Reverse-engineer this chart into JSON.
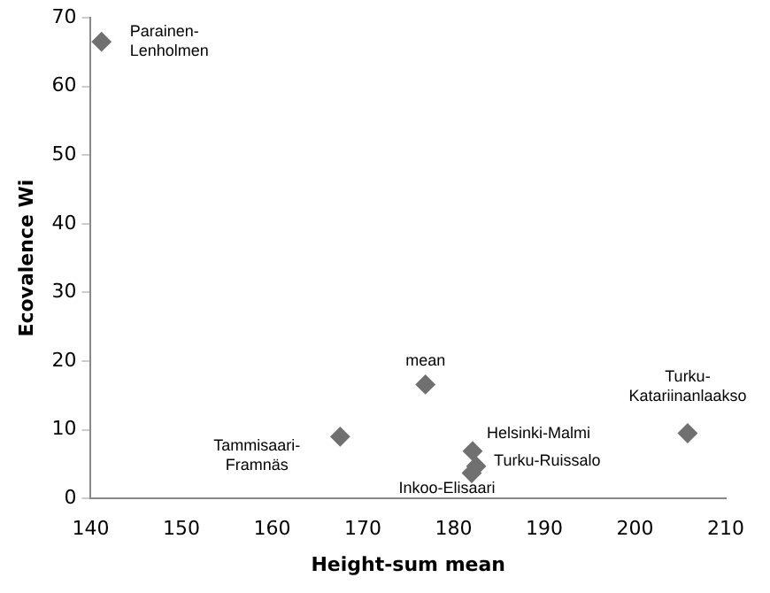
{
  "chart_data": {
    "type": "scatter",
    "xlabel": "Height-sum mean",
    "ylabel": "Ecovalence Wi",
    "x": [
      141.2,
      167.5,
      176.9,
      182.1,
      182.5,
      182,
      205.8
    ],
    "values": [
      66.5,
      9.0,
      16.6,
      6.9,
      4.7,
      3.7,
      9.5
    ],
    "color": "#707070",
    "marker": "diamond",
    "grid": false,
    "legend": false,
    "xlim": [
      140,
      210
    ],
    "xticks": [
      140,
      150,
      160,
      170,
      180,
      190,
      200,
      210
    ],
    "ylim": [
      0,
      70
    ],
    "yticks": [
      0,
      10,
      20,
      30,
      40,
      50,
      60,
      70
    ],
    "annotations": [
      {
        "text": "Parainen-Lenholmen",
        "x": 141.2,
        "y": 66.5
      },
      {
        "text": "Tammisaari-Framnäs",
        "x": 167.5,
        "y": 9.0
      },
      {
        "text": "mean",
        "x": 176.9,
        "y": 16.6
      },
      {
        "text": "Helsinki-Malmi",
        "x": 182.1,
        "y": 6.9
      },
      {
        "text": "Turku-Ruissalo",
        "x": 182.5,
        "y": 4.7
      },
      {
        "text": "Inkoo-Elisaari",
        "x": 182,
        "y": 3.7
      },
      {
        "text": "Turku-Katariinanlaakso",
        "x": 205.8,
        "y": 9.5
      }
    ]
  }
}
